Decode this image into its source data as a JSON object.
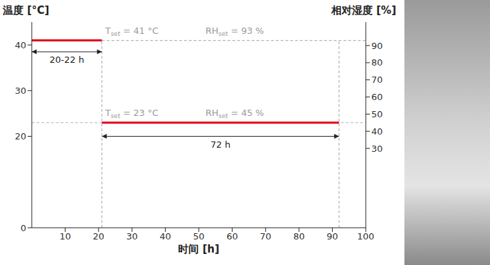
{
  "chart_data": {
    "type": "line",
    "x_label": "时间 [h]",
    "y_label": "温度 [°C]",
    "y2_label": "相对湿度 [%]",
    "xlim": [
      0,
      100
    ],
    "xticks": [
      10,
      20,
      30,
      40,
      50,
      60,
      70,
      80,
      90,
      100
    ],
    "ylim": [
      0,
      45
    ],
    "yticks": [
      0,
      20,
      30,
      40
    ],
    "y2lim": [
      -16.3,
      103.7
    ],
    "y2ticks": [
      30,
      40,
      50,
      60,
      70,
      80,
      90
    ],
    "grid": false,
    "series": [
      {
        "color": "#e2001a",
        "x": [
          0,
          21
        ],
        "values": [
          41,
          41
        ]
      },
      {
        "color": "#e2001a",
        "x": [
          21,
          92
        ],
        "values": [
          23,
          23
        ]
      }
    ],
    "guides": [
      {
        "axis": "y2",
        "x": [
          21,
          100
        ],
        "values": [
          93,
          93
        ],
        "color": "#b4b4b4",
        "line_style": "dashed"
      },
      {
        "axis": "y2",
        "x": [
          0,
          100
        ],
        "values": [
          45,
          45
        ],
        "color": "#b4b4b4",
        "line_style": "dashed"
      },
      {
        "axis": "y",
        "x": [
          21,
          21
        ],
        "values": [
          0,
          41
        ],
        "color": "#b4b4b4",
        "line_style": "dashed"
      },
      {
        "axis": "y",
        "x": [
          92,
          92
        ],
        "values": [
          0,
          41
        ],
        "color": "#b4b4b4",
        "line_style": "dashed"
      }
    ],
    "spans": [
      {
        "label": "20-22 h",
        "x": [
          0,
          21
        ],
        "y": 38.5,
        "color": "#222222"
      },
      {
        "label": "72 h",
        "x": [
          21,
          92
        ],
        "y": 20,
        "color": "#222222"
      }
    ],
    "annotations": [
      {
        "text": "T",
        "sub": "set",
        "rest": " = 41 °C",
        "x": 22,
        "y": 42.5,
        "color": "#999999"
      },
      {
        "text": "RH",
        "sub": "set",
        "rest": " = 93 %",
        "x": 52,
        "y": 42.5,
        "color": "#999999"
      },
      {
        "text": "T",
        "sub": "set",
        "rest": " = 23 °C",
        "x": 22,
        "y": 24.5,
        "color": "#999999"
      },
      {
        "text": "RH",
        "sub": "set",
        "rest": " = 45 %",
        "x": 52,
        "y": 24.5,
        "color": "#999999"
      }
    ]
  }
}
